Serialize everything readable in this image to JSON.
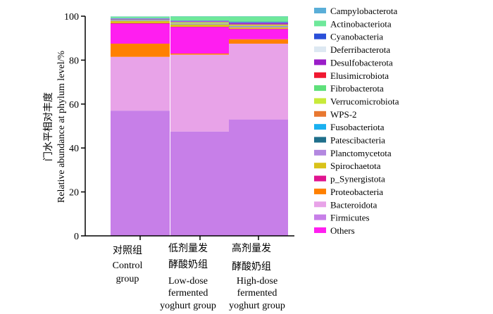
{
  "chart_data": {
    "type": "bar",
    "stacked": true,
    "ylabel_cn": "门水平相对丰度",
    "ylabel": "Relative abundance at phylum level/%",
    "ylim": [
      0,
      100
    ],
    "yticks": [
      "0",
      "20",
      "40",
      "60",
      "80",
      "100"
    ],
    "grid": false,
    "legend_position": "right",
    "categories": [
      {
        "cn": "对照组",
        "en": [
          "Control",
          "group"
        ]
      },
      {
        "cn": "低剂量发 酵酸奶组",
        "cn_lines": [
          "低剂量发",
          "酵酸奶组"
        ],
        "en": [
          "Low-dose",
          "fermented",
          "yoghurt group"
        ]
      },
      {
        "cn": "高剂量发 酵酸奶组",
        "cn_lines": [
          "高剂量发",
          "酵酸奶组"
        ],
        "en": [
          "High-dose",
          "fermented",
          "yoghurt group"
        ]
      }
    ],
    "series": [
      {
        "name": "Firmicutes",
        "color": "#c77fe8",
        "values": [
          57.0,
          47.5,
          53.0
        ]
      },
      {
        "name": "Bacteroidota",
        "color": "#e8a3e8",
        "values": [
          24.5,
          35.0,
          34.5
        ]
      },
      {
        "name": "Proteobacteria",
        "color": "#ff8000",
        "values": [
          6.0,
          0.5,
          2.0
        ]
      },
      {
        "name": "Others",
        "color": "#ff1ef0",
        "values": [
          9.0,
          12.0,
          4.5
        ]
      },
      {
        "name": "p_Synergistota",
        "color": "#e0148f",
        "values": [
          0.3,
          0.2,
          0.3
        ]
      },
      {
        "name": "Spirochaetota",
        "color": "#d9c21a",
        "values": [
          1.0,
          1.0,
          0.6
        ]
      },
      {
        "name": "Planctomycetota",
        "color": "#b388e0",
        "values": [
          0.2,
          0.2,
          0.4
        ]
      },
      {
        "name": "Patescibacteria",
        "color": "#1f6f8b",
        "values": [
          0.1,
          0.1,
          0.1
        ]
      },
      {
        "name": "Fusobacteriota",
        "color": "#1ab0f0",
        "values": [
          0.1,
          0.1,
          0.1
        ]
      },
      {
        "name": "WPS-2",
        "color": "#e87830",
        "values": [
          0.1,
          0.1,
          0.2
        ]
      },
      {
        "name": "Verrucomicrobiota",
        "color": "#c8ea3a",
        "values": [
          0.1,
          0.5,
          0.4
        ]
      },
      {
        "name": "Fibrobacterota",
        "color": "#5ee07a",
        "values": [
          0.1,
          0.1,
          0.1
        ]
      },
      {
        "name": "Elusimicrobiota",
        "color": "#f01830",
        "values": [
          0.0,
          0.0,
          0.1
        ]
      },
      {
        "name": "Desulfobacterota",
        "color": "#9a1ec8",
        "values": [
          0.3,
          0.4,
          0.6
        ]
      },
      {
        "name": "Deferribacterota",
        "color": "#dde8f2",
        "values": [
          0.1,
          0.1,
          0.1
        ]
      },
      {
        "name": "Cyanobacteria",
        "color": "#2a4fd8",
        "values": [
          0.2,
          0.2,
          0.4
        ]
      },
      {
        "name": "Actinobacteriota",
        "color": "#6ee89a",
        "values": [
          0.7,
          1.9,
          2.5
        ]
      },
      {
        "name": "Campylobacterota",
        "color": "#5aaed8",
        "values": [
          0.1,
          0.1,
          0.1
        ]
      }
    ],
    "legend_order": [
      "Campylobacterota",
      "Actinobacteriota",
      "Cyanobacteria",
      "Deferribacterota",
      "Desulfobacterota",
      "Elusimicrobiota",
      "Fibrobacterota",
      "Verrucomicrobiota",
      "WPS-2",
      "Fusobacteriota",
      "Patescibacteria",
      "Planctomycetota",
      "Spirochaetota",
      "p_Synergistota",
      "Proteobacteria",
      "Bacteroidota",
      "Firmicutes",
      "Others"
    ]
  }
}
